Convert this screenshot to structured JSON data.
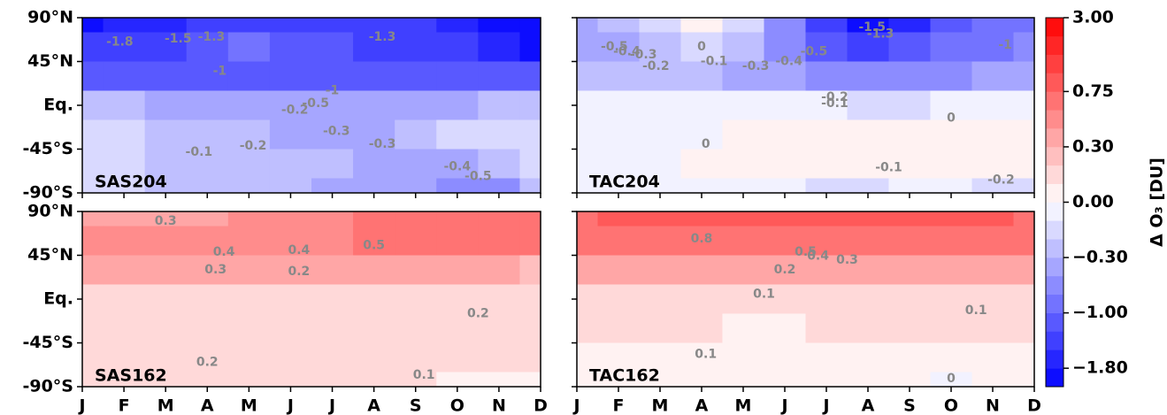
{
  "chart_data": [
    {
      "type": "contour",
      "title": "SAS204",
      "xticks": [
        0,
        1,
        2,
        3,
        4,
        5,
        6,
        7,
        8,
        9,
        10,
        11
      ],
      "y": [
        90,
        60,
        30,
        0,
        -30,
        -60,
        -90
      ],
      "ylim": [
        -90,
        90
      ],
      "yticks": [
        {
          "value": 90,
          "label": "90°N"
        },
        {
          "value": 45,
          "label": "45°N"
        },
        {
          "value": 0,
          "label": "Eq."
        },
        {
          "value": -45,
          "label": "-45°S"
        },
        {
          "value": -90,
          "label": "-90°S"
        }
      ],
      "z": [
        [
          -1.9,
          -1.7,
          -1.6,
          -1.4,
          -1.4,
          -1.4,
          -1.4,
          -1.4,
          -1.4,
          -1.6,
          -1.9,
          -1.9
        ],
        [
          -1.4,
          -1.4,
          -1.4,
          -1.1,
          -1.0,
          -1.1,
          -1.2,
          -1.4,
          -1.4,
          -1.4,
          -1.6,
          -1.9
        ],
        [
          -1.1,
          -1.1,
          -1.1,
          -1.05,
          -1.05,
          -1.05,
          -1.05,
          -1.05,
          -1.05,
          -1.05,
          -1.05,
          -1.1
        ],
        [
          -0.25,
          -0.25,
          -0.35,
          -0.35,
          -0.35,
          -0.35,
          -0.35,
          -0.35,
          -0.35,
          -0.35,
          -0.25,
          -0.25
        ],
        [
          -0.15,
          -0.15,
          -0.25,
          -0.25,
          -0.25,
          -0.35,
          -0.35,
          -0.35,
          -0.25,
          -0.15,
          -0.15,
          -0.15
        ],
        [
          -0.15,
          -0.15,
          -0.25,
          -0.25,
          -0.25,
          -0.25,
          -0.25,
          -0.35,
          -0.35,
          -0.45,
          -0.25,
          -0.15
        ],
        [
          -0.15,
          -0.15,
          -0.25,
          -0.25,
          -0.25,
          -0.25,
          -0.35,
          -0.35,
          -0.45,
          -0.6,
          -0.55,
          -0.25
        ]
      ],
      "annotations": [
        {
          "text": -1.8,
          "x": 0.9,
          "y": 65
        },
        {
          "text": -1.5,
          "x": 2.3,
          "y": 68
        },
        {
          "text": -1.3,
          "x": 3.1,
          "y": 70
        },
        {
          "text": -1.3,
          "x": 7.2,
          "y": 70
        },
        {
          "text": -1,
          "x": 3.3,
          "y": 35
        },
        {
          "text": -1,
          "x": 6,
          "y": 15
        },
        {
          "text": -0.5,
          "x": 5.6,
          "y": 2
        },
        {
          "text": -0.2,
          "x": 5.1,
          "y": -5
        },
        {
          "text": -0.1,
          "x": 2.8,
          "y": -48
        },
        {
          "text": -0.2,
          "x": 4.1,
          "y": -42
        },
        {
          "text": -0.3,
          "x": 6.1,
          "y": -27
        },
        {
          "text": -0.3,
          "x": 7.2,
          "y": -40
        },
        {
          "text": -0.4,
          "x": 9,
          "y": -63
        },
        {
          "text": -0.5,
          "x": 9.5,
          "y": -73
        }
      ]
    },
    {
      "type": "contour",
      "title": "TAC204",
      "xticks": [
        0,
        1,
        2,
        3,
        4,
        5,
        6,
        7,
        8,
        9,
        10,
        11
      ],
      "y": [
        90,
        60,
        30,
        0,
        -30,
        -60,
        -90
      ],
      "ylim": [
        -90,
        90
      ],
      "yticks": [
        90,
        45,
        0,
        -45,
        -90
      ],
      "z": [
        [
          -0.35,
          -0.25,
          -0.15,
          0.05,
          -0.15,
          -0.55,
          -1.4,
          -2.0,
          -1.6,
          -1.1,
          -0.9,
          -0.9
        ],
        [
          -0.35,
          -0.35,
          -0.25,
          -0.15,
          -0.25,
          -0.55,
          -1.1,
          -1.4,
          -1.1,
          -0.9,
          -0.9,
          -0.7
        ],
        [
          -0.25,
          -0.25,
          -0.25,
          -0.25,
          -0.35,
          -0.45,
          -0.6,
          -0.6,
          -0.55,
          -0.55,
          -0.45,
          -0.35
        ],
        [
          -0.05,
          -0.05,
          -0.05,
          -0.05,
          -0.05,
          -0.05,
          -0.05,
          -0.15,
          -0.15,
          -0.05,
          -0.05,
          -0.05
        ],
        [
          -0.05,
          -0.05,
          -0.05,
          -0.05,
          0.05,
          0.05,
          0.05,
          0.05,
          0.05,
          0.05,
          0.05,
          0.05
        ],
        [
          -0.05,
          -0.05,
          -0.05,
          0.05,
          0.05,
          0.05,
          0.05,
          0.05,
          0.05,
          0.05,
          0.05,
          0.05
        ],
        [
          -0.05,
          -0.05,
          -0.05,
          -0.05,
          -0.05,
          -0.05,
          -0.15,
          -0.15,
          -0.05,
          -0.05,
          -0.15,
          -0.15
        ]
      ],
      "annotations": [
        {
          "text": -0.5,
          "x": 0.9,
          "y": 60
        },
        {
          "text": -0.4,
          "x": 1.2,
          "y": 55
        },
        {
          "text": -0.3,
          "x": 1.6,
          "y": 52
        },
        {
          "text": -0.2,
          "x": 1.9,
          "y": 40
        },
        {
          "text": 0,
          "x": 3,
          "y": 60
        },
        {
          "text": -0.1,
          "x": 3.3,
          "y": 45
        },
        {
          "text": -0.3,
          "x": 4.3,
          "y": 40
        },
        {
          "text": -0.4,
          "x": 5.1,
          "y": 45
        },
        {
          "text": -0.5,
          "x": 5.7,
          "y": 55
        },
        {
          "text": -1.5,
          "x": 7.1,
          "y": 80
        },
        {
          "text": -1.3,
          "x": 7.3,
          "y": 73
        },
        {
          "text": -1,
          "x": 10.3,
          "y": 62
        },
        {
          "text": -0.2,
          "x": 6.2,
          "y": 8
        },
        {
          "text": -0.1,
          "x": 6.2,
          "y": 2
        },
        {
          "text": 0,
          "x": 9,
          "y": -13
        },
        {
          "text": 0,
          "x": 3.1,
          "y": -40
        },
        {
          "text": -0.1,
          "x": 7.5,
          "y": -64
        },
        {
          "text": -0.2,
          "x": 10.2,
          "y": -77
        }
      ]
    },
    {
      "type": "contour",
      "title": "SAS162",
      "categories": [
        "J",
        "F",
        "M",
        "A",
        "M",
        "J",
        "J",
        "A",
        "S",
        "O",
        "N",
        "D"
      ],
      "y": [
        90,
        60,
        30,
        0,
        -30,
        -60,
        -90
      ],
      "ylim": [
        -90,
        90
      ],
      "yticks": [
        {
          "value": 90,
          "label": "90°N"
        },
        {
          "value": 45,
          "label": "45°N"
        },
        {
          "value": 0,
          "label": "Eq."
        },
        {
          "value": -45,
          "label": "-45°S"
        },
        {
          "value": -90,
          "label": "-90°S"
        }
      ],
      "z": [
        [
          0.35,
          0.35,
          0.35,
          0.35,
          0.45,
          0.45,
          0.45,
          0.55,
          0.55,
          0.6,
          0.6,
          0.6
        ],
        [
          0.45,
          0.45,
          0.45,
          0.45,
          0.45,
          0.45,
          0.45,
          0.55,
          0.55,
          0.55,
          0.55,
          0.55
        ],
        [
          0.35,
          0.35,
          0.35,
          0.35,
          0.35,
          0.35,
          0.35,
          0.35,
          0.35,
          0.35,
          0.35,
          0.25
        ],
        [
          0.15,
          0.15,
          0.15,
          0.15,
          0.15,
          0.15,
          0.15,
          0.15,
          0.15,
          0.15,
          0.15,
          0.15
        ],
        [
          0.15,
          0.15,
          0.15,
          0.15,
          0.15,
          0.15,
          0.15,
          0.15,
          0.15,
          0.15,
          0.15,
          0.15
        ],
        [
          0.15,
          0.15,
          0.15,
          0.15,
          0.15,
          0.15,
          0.15,
          0.15,
          0.15,
          0.15,
          0.15,
          0.15
        ],
        [
          0.15,
          0.15,
          0.15,
          0.15,
          0.15,
          0.15,
          0.15,
          0.15,
          0.15,
          0.05,
          0.05,
          0.05
        ]
      ],
      "annotations": [
        {
          "text": 0.3,
          "x": 2,
          "y": 80
        },
        {
          "text": 0.4,
          "x": 3.4,
          "y": 48
        },
        {
          "text": 0.3,
          "x": 3.2,
          "y": 30
        },
        {
          "text": 0.4,
          "x": 5.2,
          "y": 50
        },
        {
          "text": 0.2,
          "x": 5.2,
          "y": 28
        },
        {
          "text": 0.5,
          "x": 7,
          "y": 55
        },
        {
          "text": 0.2,
          "x": 9.5,
          "y": -15
        },
        {
          "text": 0.2,
          "x": 3,
          "y": -65
        },
        {
          "text": 0.1,
          "x": 8.2,
          "y": -78
        }
      ]
    },
    {
      "type": "contour",
      "title": "TAC162",
      "categories": [
        "J",
        "F",
        "M",
        "A",
        "M",
        "J",
        "J",
        "A",
        "S",
        "O",
        "N",
        "D"
      ],
      "y": [
        90,
        60,
        30,
        0,
        -30,
        -60,
        -90
      ],
      "ylim": [
        -90,
        90
      ],
      "yticks": [
        90,
        45,
        0,
        -45,
        -90
      ],
      "z": [
        [
          0.6,
          0.85,
          0.85,
          0.85,
          0.85,
          0.85,
          0.85,
          0.85,
          0.85,
          0.85,
          0.85,
          0.6
        ],
        [
          0.6,
          0.6,
          0.6,
          0.6,
          0.6,
          0.6,
          0.6,
          0.6,
          0.6,
          0.6,
          0.6,
          0.6
        ],
        [
          0.35,
          0.35,
          0.35,
          0.35,
          0.35,
          0.35,
          0.35,
          0.35,
          0.35,
          0.35,
          0.35,
          0.35
        ],
        [
          0.15,
          0.15,
          0.15,
          0.15,
          0.15,
          0.15,
          0.15,
          0.15,
          0.15,
          0.15,
          0.15,
          0.15
        ],
        [
          0.15,
          0.15,
          0.15,
          0.15,
          0.05,
          0.05,
          0.15,
          0.15,
          0.15,
          0.15,
          0.15,
          0.15
        ],
        [
          0.05,
          0.05,
          0.05,
          0.05,
          0.05,
          0.05,
          0.05,
          0.05,
          0.05,
          0.05,
          0.05,
          0.05
        ],
        [
          0.05,
          0.05,
          0.05,
          0.05,
          0.05,
          0.05,
          0.05,
          0.05,
          0.05,
          -0.05,
          0.05,
          0.05
        ]
      ],
      "annotations": [
        {
          "text": 0.8,
          "x": 3,
          "y": 62
        },
        {
          "text": 0.5,
          "x": 5.5,
          "y": 48
        },
        {
          "text": 0.4,
          "x": 5.8,
          "y": 44
        },
        {
          "text": 0.3,
          "x": 6.5,
          "y": 40
        },
        {
          "text": 0.2,
          "x": 5,
          "y": 30
        },
        {
          "text": 0.1,
          "x": 4.5,
          "y": 5
        },
        {
          "text": 0.1,
          "x": 9.6,
          "y": -12
        },
        {
          "text": 0.1,
          "x": 3.1,
          "y": -57
        },
        {
          "text": 0,
          "x": 9,
          "y": -82
        }
      ]
    },
    {
      "type": "colorbar",
      "label": "Δ O₃ [DU]",
      "cmap": "bwr",
      "bounds": [
        -3,
        -1.8,
        -1.5,
        -1.3,
        -1,
        -0.8,
        -0.5,
        -0.3,
        -0.2,
        -0.1,
        0,
        0.1,
        0.2,
        0.3,
        0.4,
        0.5,
        0.75,
        1,
        1.3,
        1.8,
        3
      ],
      "ticks": [
        {
          "value": 3,
          "label": "3.00"
        },
        {
          "value": 0.75,
          "label": "0.75"
        },
        {
          "value": 0.3,
          "label": "0.30"
        },
        {
          "value": 0,
          "label": "0.00"
        },
        {
          "value": -0.3,
          "label": "−0.30"
        },
        {
          "value": -1,
          "label": "−1.00"
        },
        {
          "value": -1.8,
          "label": "−1.80"
        }
      ]
    }
  ]
}
